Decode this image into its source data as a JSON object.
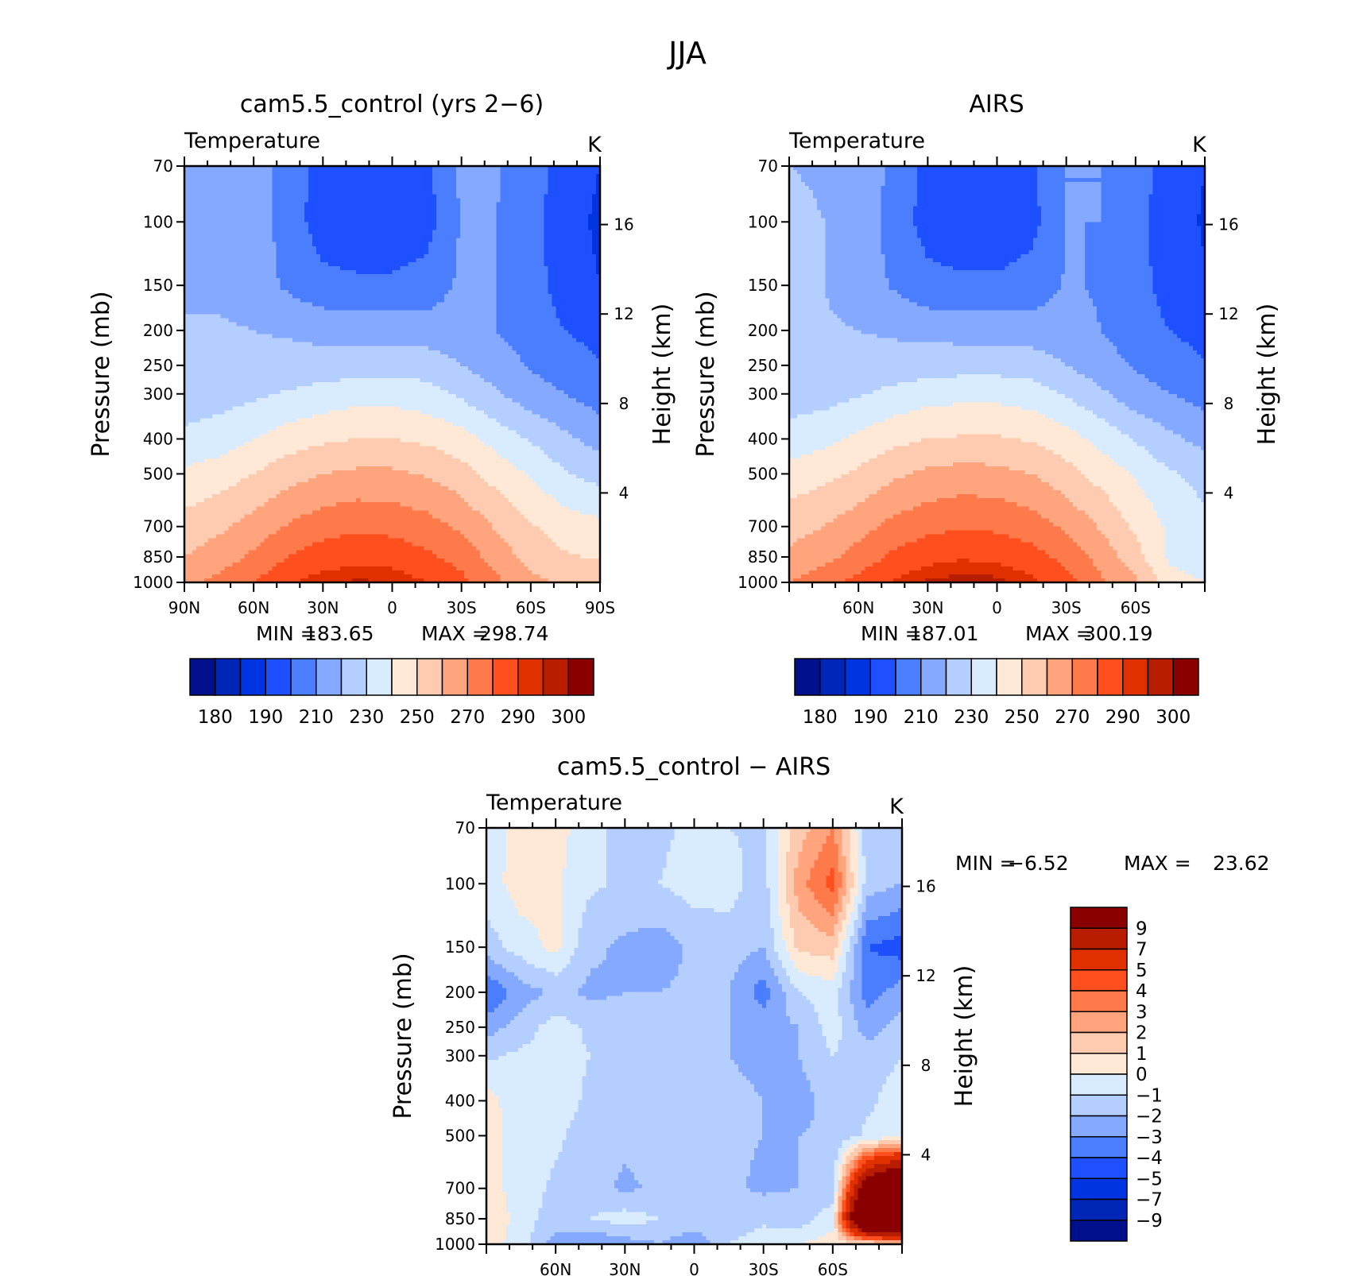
{
  "figure": {
    "title": "JJA"
  },
  "chart_data": [
    {
      "id": "model",
      "type": "heatmap",
      "title": "cam5.5_control (yrs 2−6)",
      "subtitle": "Temperature",
      "units": "K",
      "ylabel": "Pressure (mb)",
      "ylabel_right": "Height (km)",
      "ylim": [
        1000,
        70
      ],
      "yscale": "log",
      "xlim": [
        90,
        -90
      ],
      "x_ticks": [
        90,
        60,
        30,
        0,
        -30,
        -60,
        -90
      ],
      "x_ticklabels": [
        "90N",
        "60N",
        "30N",
        "0",
        "30S",
        "60S",
        "90S"
      ],
      "y_ticks": [
        70,
        100,
        150,
        200,
        250,
        300,
        400,
        500,
        700,
        850,
        1000
      ],
      "height_ticks": [
        4,
        8,
        12,
        16
      ],
      "stats": {
        "min_label": "MIN =",
        "min": "183.65",
        "max_label": "MAX =",
        "max": "298.74"
      },
      "colorbar": {
        "orientation": "horizontal",
        "levels": [
          175,
          180,
          185,
          190,
          200,
          210,
          220,
          230,
          240,
          250,
          260,
          270,
          280,
          290,
          295,
          300
        ],
        "labels": [
          "180",
          "190",
          "210",
          "230",
          "250",
          "270",
          "290",
          "300"
        ],
        "colors": [
          "#000f8a",
          "#0026b8",
          "#0034e0",
          "#1e50ff",
          "#4a7eff",
          "#84a9ff",
          "#b4ceff",
          "#d9ebff",
          "#ffe8d6",
          "#ffcbb0",
          "#ffa47d",
          "#ff7a4a",
          "#ff4f1f",
          "#e03000",
          "#b81d00",
          "#8a0000"
        ]
      },
      "field": {
        "lat": [
          90,
          75,
          60,
          45,
          30,
          15,
          0,
          -15,
          -30,
          -45,
          -60,
          -75,
          -90
        ],
        "p": [
          70,
          100,
          150,
          200,
          250,
          300,
          400,
          500,
          700,
          850,
          1000
        ],
        "T": [
          [
            218,
            218,
            217,
            205,
            196,
            194,
            194,
            198,
            212,
            211,
            205,
            196,
            190
          ],
          [
            218,
            218,
            216,
            205,
            195,
            192,
            192,
            196,
            211,
            210,
            203,
            194,
            188
          ],
          [
            218,
            218,
            216,
            208,
            203,
            202,
            202,
            204,
            212,
            210,
            204,
            196,
            190
          ],
          [
            221,
            221,
            220,
            219,
            217,
            216,
            216,
            215,
            215,
            210,
            205,
            200,
            196
          ],
          [
            222,
            222,
            222,
            223,
            224,
            225,
            226,
            225,
            220,
            215,
            209,
            205,
            201
          ],
          [
            225,
            226,
            228,
            231,
            234,
            236,
            236,
            234,
            228,
            221,
            214,
            210,
            205
          ],
          [
            232,
            235,
            240,
            245,
            248,
            250,
            250,
            248,
            244,
            236,
            229,
            222,
            216
          ],
          [
            242,
            245,
            250,
            256,
            260,
            262,
            262,
            259,
            254,
            246,
            239,
            231,
            226
          ],
          [
            254,
            258,
            264,
            271,
            276,
            278,
            277,
            274,
            268,
            259,
            251,
            245,
            243
          ],
          [
            260,
            265,
            272,
            280,
            285,
            287,
            286,
            282,
            276,
            266,
            256,
            251,
            249
          ],
          [
            268,
            273,
            280,
            289,
            294,
            296,
            295,
            290,
            283,
            272,
            263,
            258,
            256
          ]
        ]
      }
    },
    {
      "id": "obs",
      "type": "heatmap",
      "title": "AIRS",
      "subtitle": "Temperature",
      "units": "K",
      "ylabel": "Pressure (mb)",
      "ylabel_right": "Height (km)",
      "ylim": [
        1000,
        70
      ],
      "yscale": "log",
      "xlim": [
        90,
        -90
      ],
      "x_ticks": [
        60,
        30,
        0,
        -30,
        -60
      ],
      "x_ticklabels": [
        "60N",
        "30N",
        "0",
        "30S",
        "60S"
      ],
      "y_ticks": [
        70,
        100,
        150,
        200,
        250,
        300,
        400,
        500,
        700,
        850,
        1000
      ],
      "height_ticks": [
        4,
        8,
        12,
        16
      ],
      "stats": {
        "min_label": "MIN =",
        "min": "187.01",
        "max_label": "MAX =",
        "max": "300.19"
      },
      "colorbar": {
        "orientation": "horizontal",
        "levels": [
          175,
          180,
          185,
          190,
          200,
          210,
          220,
          230,
          240,
          250,
          260,
          270,
          280,
          290,
          295,
          300
        ],
        "labels": [
          "180",
          "190",
          "210",
          "230",
          "250",
          "270",
          "290",
          "300"
        ],
        "colors": [
          "#000f8a",
          "#0026b8",
          "#0034e0",
          "#1e50ff",
          "#4a7eff",
          "#84a9ff",
          "#b4ceff",
          "#d9ebff",
          "#ffe8d6",
          "#ffcbb0",
          "#ffa47d",
          "#ff7a4a",
          "#ff4f1f",
          "#e03000",
          "#b81d00",
          "#8a0000"
        ]
      },
      "field": {
        "lat": [
          90,
          75,
          60,
          45,
          30,
          15,
          0,
          -15,
          -30,
          -45,
          -60,
          -75,
          -90
        ],
        "p": [
          70,
          100,
          150,
          200,
          250,
          300,
          400,
          500,
          700,
          850,
          1000
        ],
        "T": [
          [
            220,
            219,
            217,
            208,
            197,
            195,
            195,
            198,
            210,
            210,
            205,
            196,
            190
          ],
          [
            222,
            220,
            216,
            206,
            196,
            193,
            193,
            197,
            210,
            210,
            203,
            194,
            189
          ],
          [
            224,
            220,
            216,
            209,
            203,
            202,
            202,
            204,
            211,
            209,
            204,
            196,
            191
          ],
          [
            224,
            221,
            220,
            219,
            217,
            216,
            216,
            215,
            214,
            210,
            205,
            200,
            196
          ],
          [
            223,
            222,
            222,
            223,
            225,
            226,
            226,
            225,
            220,
            214,
            209,
            205,
            201
          ],
          [
            225,
            226,
            229,
            233,
            236,
            237,
            237,
            235,
            229,
            222,
            214,
            210,
            206
          ],
          [
            234,
            237,
            242,
            247,
            250,
            251,
            251,
            249,
            244,
            237,
            229,
            222,
            217
          ],
          [
            244,
            247,
            252,
            258,
            262,
            264,
            263,
            260,
            254,
            246,
            239,
            231,
            227
          ],
          [
            256,
            260,
            266,
            273,
            277,
            279,
            278,
            275,
            268,
            259,
            248,
            238,
            232
          ],
          [
            262,
            267,
            274,
            282,
            287,
            289,
            288,
            284,
            277,
            266,
            254,
            238,
            232
          ],
          [
            270,
            276,
            283,
            291,
            296,
            298,
            297,
            292,
            284,
            272,
            262,
            245,
            240
          ]
        ]
      }
    },
    {
      "id": "diff",
      "type": "heatmap",
      "title": "cam5.5_control − AIRS",
      "subtitle": "Temperature",
      "units": "K",
      "ylabel": "Pressure (mb)",
      "ylabel_right": "Height (km)",
      "ylim": [
        1000,
        70
      ],
      "yscale": "log",
      "xlim": [
        90,
        -90
      ],
      "x_ticks": [
        60,
        30,
        0,
        -30,
        -60
      ],
      "x_ticklabels": [
        "60N",
        "30N",
        "0",
        "30S",
        "60S"
      ],
      "y_ticks": [
        70,
        100,
        150,
        200,
        250,
        300,
        400,
        500,
        700,
        850,
        1000
      ],
      "height_ticks": [
        4,
        8,
        12,
        16
      ],
      "stats": {
        "min_label": "MIN =",
        "min": "−6.52",
        "max_label": "MAX =",
        "max": "23.62"
      },
      "colorbar": {
        "orientation": "vertical",
        "levels": [
          -20,
          -9,
          -7,
          -5,
          -4,
          -3,
          -2,
          -1,
          0,
          1,
          2,
          3,
          4,
          5,
          7,
          9
        ],
        "labels": [
          "9",
          "7",
          "5",
          "4",
          "3",
          "2",
          "1",
          "0",
          "−1",
          "−2",
          "−3",
          "−4",
          "−5",
          "−7",
          "−9"
        ],
        "colors": [
          "#000f8a",
          "#0026b8",
          "#0034e0",
          "#1e50ff",
          "#4a7eff",
          "#84a9ff",
          "#b4ceff",
          "#d9ebff",
          "#ffe8d6",
          "#ffcbb0",
          "#ffa47d",
          "#ff7a4a",
          "#ff4f1f",
          "#e03000",
          "#b81d00",
          "#8a0000"
        ]
      },
      "field": {
        "lat": [
          90,
          75,
          60,
          45,
          30,
          15,
          0,
          -15,
          -30,
          -45,
          -60,
          -75,
          -90
        ],
        "p": [
          70,
          100,
          150,
          200,
          250,
          300,
          400,
          500,
          700,
          850,
          1000
        ],
        "T": [
          [
            -0.5,
            0.3,
            0.4,
            -0.6,
            -1.5,
            -1.2,
            -0.8,
            -1.0,
            -1.2,
            1.5,
            3.0,
            -1.5,
            -1.2
          ],
          [
            -0.5,
            0.5,
            0.2,
            -0.8,
            -1.2,
            -1.0,
            -0.5,
            -0.6,
            -1.5,
            2.5,
            4.5,
            -1.5,
            -2.0
          ],
          [
            -1.5,
            -0.5,
            0.3,
            -1.8,
            -2.2,
            -2.5,
            -1.8,
            -1.5,
            -2.0,
            1.2,
            1.5,
            -4.0,
            -4.5
          ],
          [
            -4.0,
            -2.5,
            -1.8,
            -2.2,
            -2.0,
            -2.0,
            -1.8,
            -2.0,
            -3.5,
            -1.0,
            -0.5,
            -3.5,
            -2.5
          ],
          [
            -2.5,
            -1.5,
            -0.5,
            -1.2,
            -1.8,
            -1.5,
            -1.5,
            -2.0,
            -2.5,
            -2.0,
            -0.5,
            -2.5,
            -1.5
          ],
          [
            -1.2,
            -0.8,
            -0.6,
            -1.0,
            -1.6,
            -1.4,
            -1.5,
            -2.0,
            -2.2,
            -2.0,
            -1.0,
            -1.5,
            -1.0
          ],
          [
            0.5,
            -0.8,
            -0.5,
            -1.2,
            -1.3,
            -1.4,
            -1.6,
            -1.8,
            -2.0,
            -2.5,
            -1.5,
            -1.2,
            -0.5
          ],
          [
            0.5,
            -0.5,
            -0.8,
            -1.5,
            -1.8,
            -1.5,
            -1.6,
            -1.8,
            -2.0,
            -2.0,
            -1.8,
            -0.8,
            -0.5
          ],
          [
            0.5,
            -0.5,
            -1.2,
            -1.6,
            -2.2,
            -1.8,
            -1.5,
            -1.8,
            -2.2,
            -2.0,
            -1.5,
            12.0,
            16.0
          ],
          [
            1.0,
            -0.5,
            -1.5,
            -1.0,
            -0.5,
            -1.0,
            -1.0,
            -1.5,
            -1.2,
            -1.5,
            -0.5,
            18.0,
            20.0
          ],
          [
            0.5,
            -0.5,
            -2.5,
            -3.0,
            -2.5,
            -2.0,
            -3.0,
            -1.0,
            -0.5,
            0.0,
            0.5,
            0.5,
            1.0
          ]
        ]
      }
    }
  ]
}
